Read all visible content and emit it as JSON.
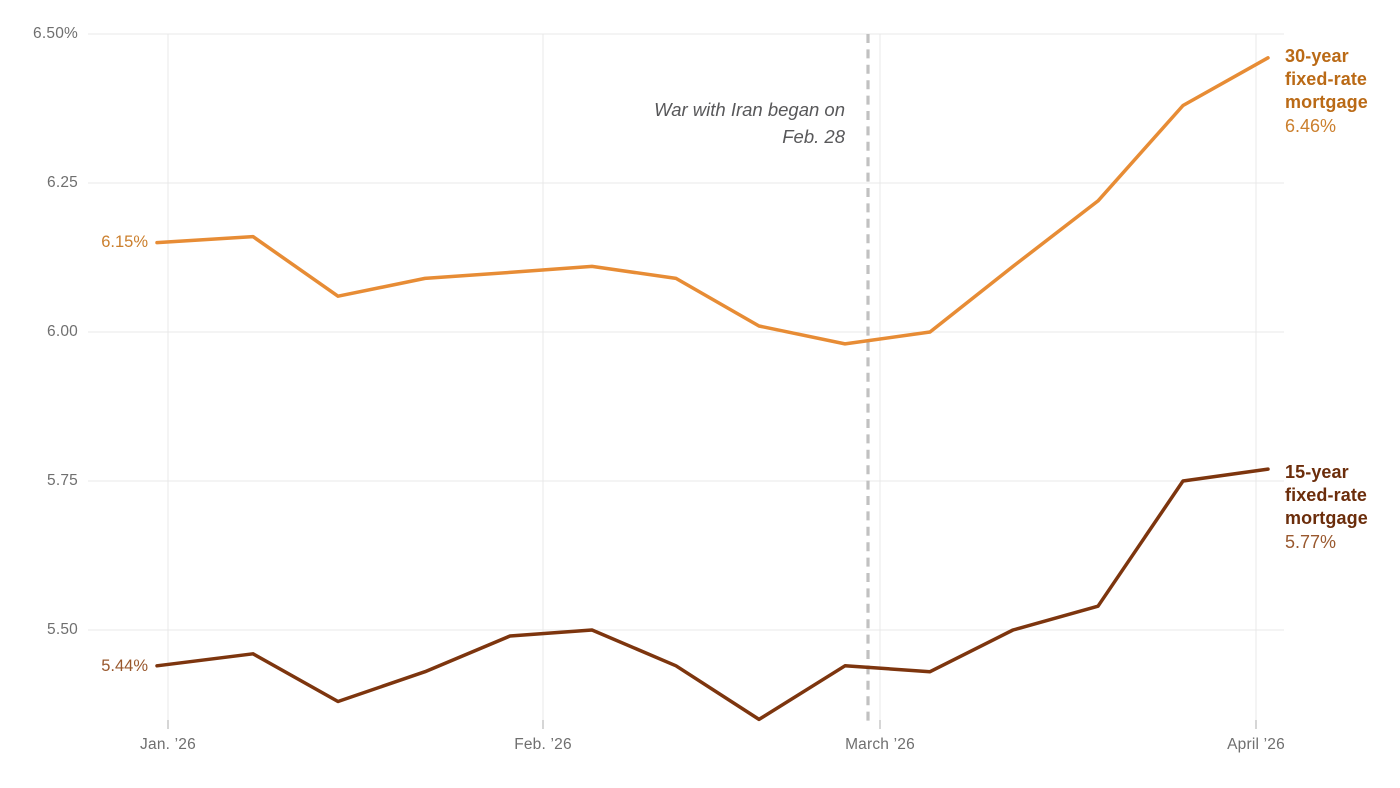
{
  "chart_data": {
    "type": "line",
    "title": "",
    "x_axis": {
      "tick_labels": [
        "Jan. ’26",
        "Feb. ’26",
        "March ’26",
        "April ’26"
      ]
    },
    "y_axis": {
      "tick_labels": [
        "6.50%",
        "6.25",
        "6.00",
        "5.75",
        "5.50"
      ],
      "tick_values": [
        6.5,
        6.25,
        6.0,
        5.75,
        5.5
      ],
      "range": [
        5.33,
        6.5
      ],
      "unit": "percent"
    },
    "series": [
      {
        "name": "30-year fixed-rate mortgage",
        "name_lines": [
          "30-year",
          "fixed-rate",
          "mortgage"
        ],
        "color": "#E78C35",
        "label_color": "#BA6A16",
        "value_color": "#CB7F2D",
        "start_label": "6.15%",
        "end_label": "6.46%",
        "values": [
          6.15,
          6.16,
          6.06,
          6.09,
          6.1,
          6.11,
          6.09,
          6.01,
          5.98,
          6.0,
          6.11,
          6.22,
          6.38,
          6.46
        ]
      },
      {
        "name": "15-year fixed-rate mortgage",
        "name_lines": [
          "15-year",
          "fixed-rate",
          "mortgage"
        ],
        "color": "#7D350E",
        "label_color": "#6B2D0B",
        "value_color": "#99582E",
        "start_label": "5.44%",
        "end_label": "5.77%",
        "values": [
          5.44,
          5.46,
          5.38,
          5.43,
          5.49,
          5.5,
          5.44,
          5.35,
          5.44,
          5.43,
          5.5,
          5.54,
          5.75,
          5.77
        ]
      }
    ],
    "annotation": {
      "line1": "War with Iran began on",
      "line2": "Feb. 28"
    },
    "grid": true,
    "legend_position": "right-of-line-ends"
  },
  "colors": {
    "axis_text": "#6F6F6F",
    "annotation_text": "#58585A",
    "gridline": "#E9E9E9",
    "tick": "#C9C9C9",
    "dashed_line": "#C1C1C1",
    "background": "#FFFFFF"
  }
}
